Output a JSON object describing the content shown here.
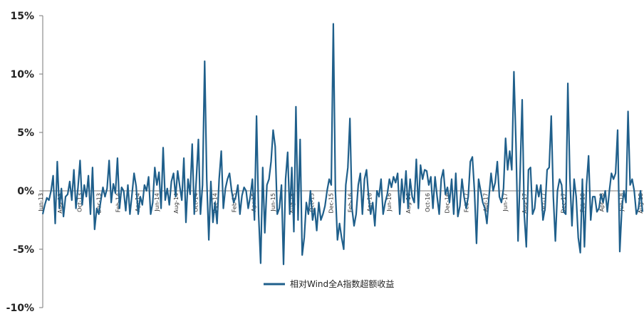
{
  "chart_data": {
    "type": "line",
    "y_unit": "%",
    "ylim": [
      -10,
      15
    ],
    "yticks": [
      15,
      10,
      5,
      0,
      -5,
      -10
    ],
    "ytick_labels": [
      "15%",
      "10%",
      "5%",
      "0%",
      "-5%",
      "-10%"
    ],
    "xtick_labels": [
      "Jun-13",
      "Aug-13",
      "Oct-13",
      "Dec-13",
      "Feb-14",
      "Apr-14",
      "Jun-14",
      "Aug-14",
      "Oct-14",
      "Dec-14",
      "Feb-15",
      "Apr-15",
      "Jun-15",
      "Aug-15",
      "Oct-15",
      "Dec-15",
      "Feb-16",
      "Apr-16",
      "Jun-16",
      "Aug-16",
      "Oct-16",
      "Dec-16",
      "Feb-17",
      "Apr-17",
      "Jun-17",
      "Aug-17",
      "Oct-17",
      "Dec-17",
      "Feb-18",
      "Apr-18",
      "Jun-18",
      "Aug-18"
    ],
    "grid": false,
    "legend_position": "bottom-center",
    "series": [
      {
        "name": "相对Wind全A指数超额收益",
        "color": "#1f5f8b",
        "values": [
          -2.0,
          -1.2,
          -0.6,
          -0.8,
          0.0,
          1.3,
          -2.8,
          2.5,
          -1.5,
          0.2,
          -2.2,
          -0.5,
          -0.3,
          0.8,
          -0.8,
          1.8,
          -1.5,
          0.3,
          2.6,
          -1.2,
          0.5,
          -0.5,
          1.3,
          -2.0,
          2.0,
          -3.3,
          -1.5,
          -2.0,
          -0.8,
          0.3,
          -0.5,
          0.2,
          2.6,
          -1.0,
          0.6,
          -0.2,
          2.8,
          -1.5,
          0.3,
          0.0,
          -1.7,
          0.5,
          -2.0,
          -0.3,
          1.5,
          0.4,
          -2.0,
          -0.5,
          -1.2,
          0.5,
          0.0,
          1.2,
          -2.0,
          -1.0,
          2.0,
          0.5,
          1.6,
          -1.5,
          3.7,
          -0.8,
          0.2,
          -1.2,
          0.8,
          1.5,
          -0.5,
          1.7,
          0.4,
          -0.8,
          2.8,
          -2.7,
          1.0,
          -0.3,
          4.0,
          -2.0,
          1.0,
          4.4,
          -2.0,
          0.5,
          11.1,
          1.0,
          -4.2,
          0.8,
          -2.7,
          -1.0,
          -2.8,
          1.0,
          3.4,
          -1.5,
          0.2,
          1.0,
          1.5,
          0.0,
          -1.0,
          -0.5,
          0.5,
          -2.0,
          -0.4,
          0.3,
          0.0,
          -1.5,
          -0.5,
          1.0,
          -2.5,
          6.4,
          -2.0,
          -6.2,
          2.0,
          -3.6,
          0.5,
          1.0,
          2.5,
          5.2,
          3.8,
          -2.0,
          -1.5,
          0.5,
          -6.3,
          1.0,
          3.3,
          -2.0,
          2.0,
          -3.5,
          7.2,
          -2.5,
          4.4,
          -5.5,
          -4.0,
          -1.0,
          -2.0,
          0.0,
          -2.5,
          -1.5,
          -3.4,
          -1.0,
          -2.5,
          -2.0,
          -1.3,
          0.0,
          1.0,
          0.5,
          14.3,
          0.0,
          -4.2,
          -2.8,
          -4.0,
          -5.0,
          0.5,
          2.0,
          6.2,
          -1.5,
          -3.0,
          -2.0,
          0.5,
          1.5,
          -2.0,
          1.0,
          1.8,
          -0.5,
          -2.0,
          -1.0,
          -3.0,
          0.0,
          -0.5,
          1.0,
          -2.0,
          -1.0,
          -0.3,
          1.0,
          0.3,
          1.2,
          0.7,
          1.5,
          -2.0,
          1.0,
          -1.0,
          1.7,
          -1.5,
          1.0,
          -0.5,
          -1.0,
          2.7,
          -1.5,
          2.2,
          1.0,
          1.8,
          1.7,
          0.5,
          1.2,
          -1.5,
          1.2,
          -0.5,
          -2.0,
          1.0,
          1.8,
          -0.3,
          0.3,
          -1.0,
          1.0,
          -2.0,
          1.5,
          -2.2,
          -1.3,
          1.0,
          -0.5,
          -1.5,
          -0.5,
          2.5,
          2.9,
          0.0,
          -4.5,
          1.0,
          0.0,
          -1.0,
          -1.5,
          -2.8,
          -0.5,
          1.5,
          0.0,
          0.7,
          2.5,
          -0.5,
          -1.0,
          0.2,
          4.5,
          1.8,
          3.4,
          1.8,
          10.2,
          4.0,
          -4.3,
          1.5,
          7.8,
          -2.0,
          -4.8,
          1.8,
          2.0,
          -2.0,
          -1.5,
          0.5,
          -0.5,
          0.5,
          -2.5,
          -1.5,
          1.8,
          2.0,
          6.4,
          -0.5,
          -4.3,
          0.0,
          1.0,
          0.5,
          -1.8,
          -2.0,
          9.2,
          1.0,
          -3.0,
          1.0,
          -0.5,
          -4.0,
          -5.3,
          1.0,
          -4.8,
          0.5,
          3.0,
          -2.5,
          -0.5,
          -0.5,
          -1.8,
          -1.5,
          -0.3,
          -1.0,
          0.0,
          -1.8,
          0.0,
          1.5,
          1.0,
          1.5,
          5.2,
          -5.2,
          -1.5,
          0.0,
          -1.0,
          6.8,
          0.5,
          1.0,
          0.0,
          -2.0,
          -1.5,
          0.0,
          -1.8
        ]
      }
    ]
  }
}
